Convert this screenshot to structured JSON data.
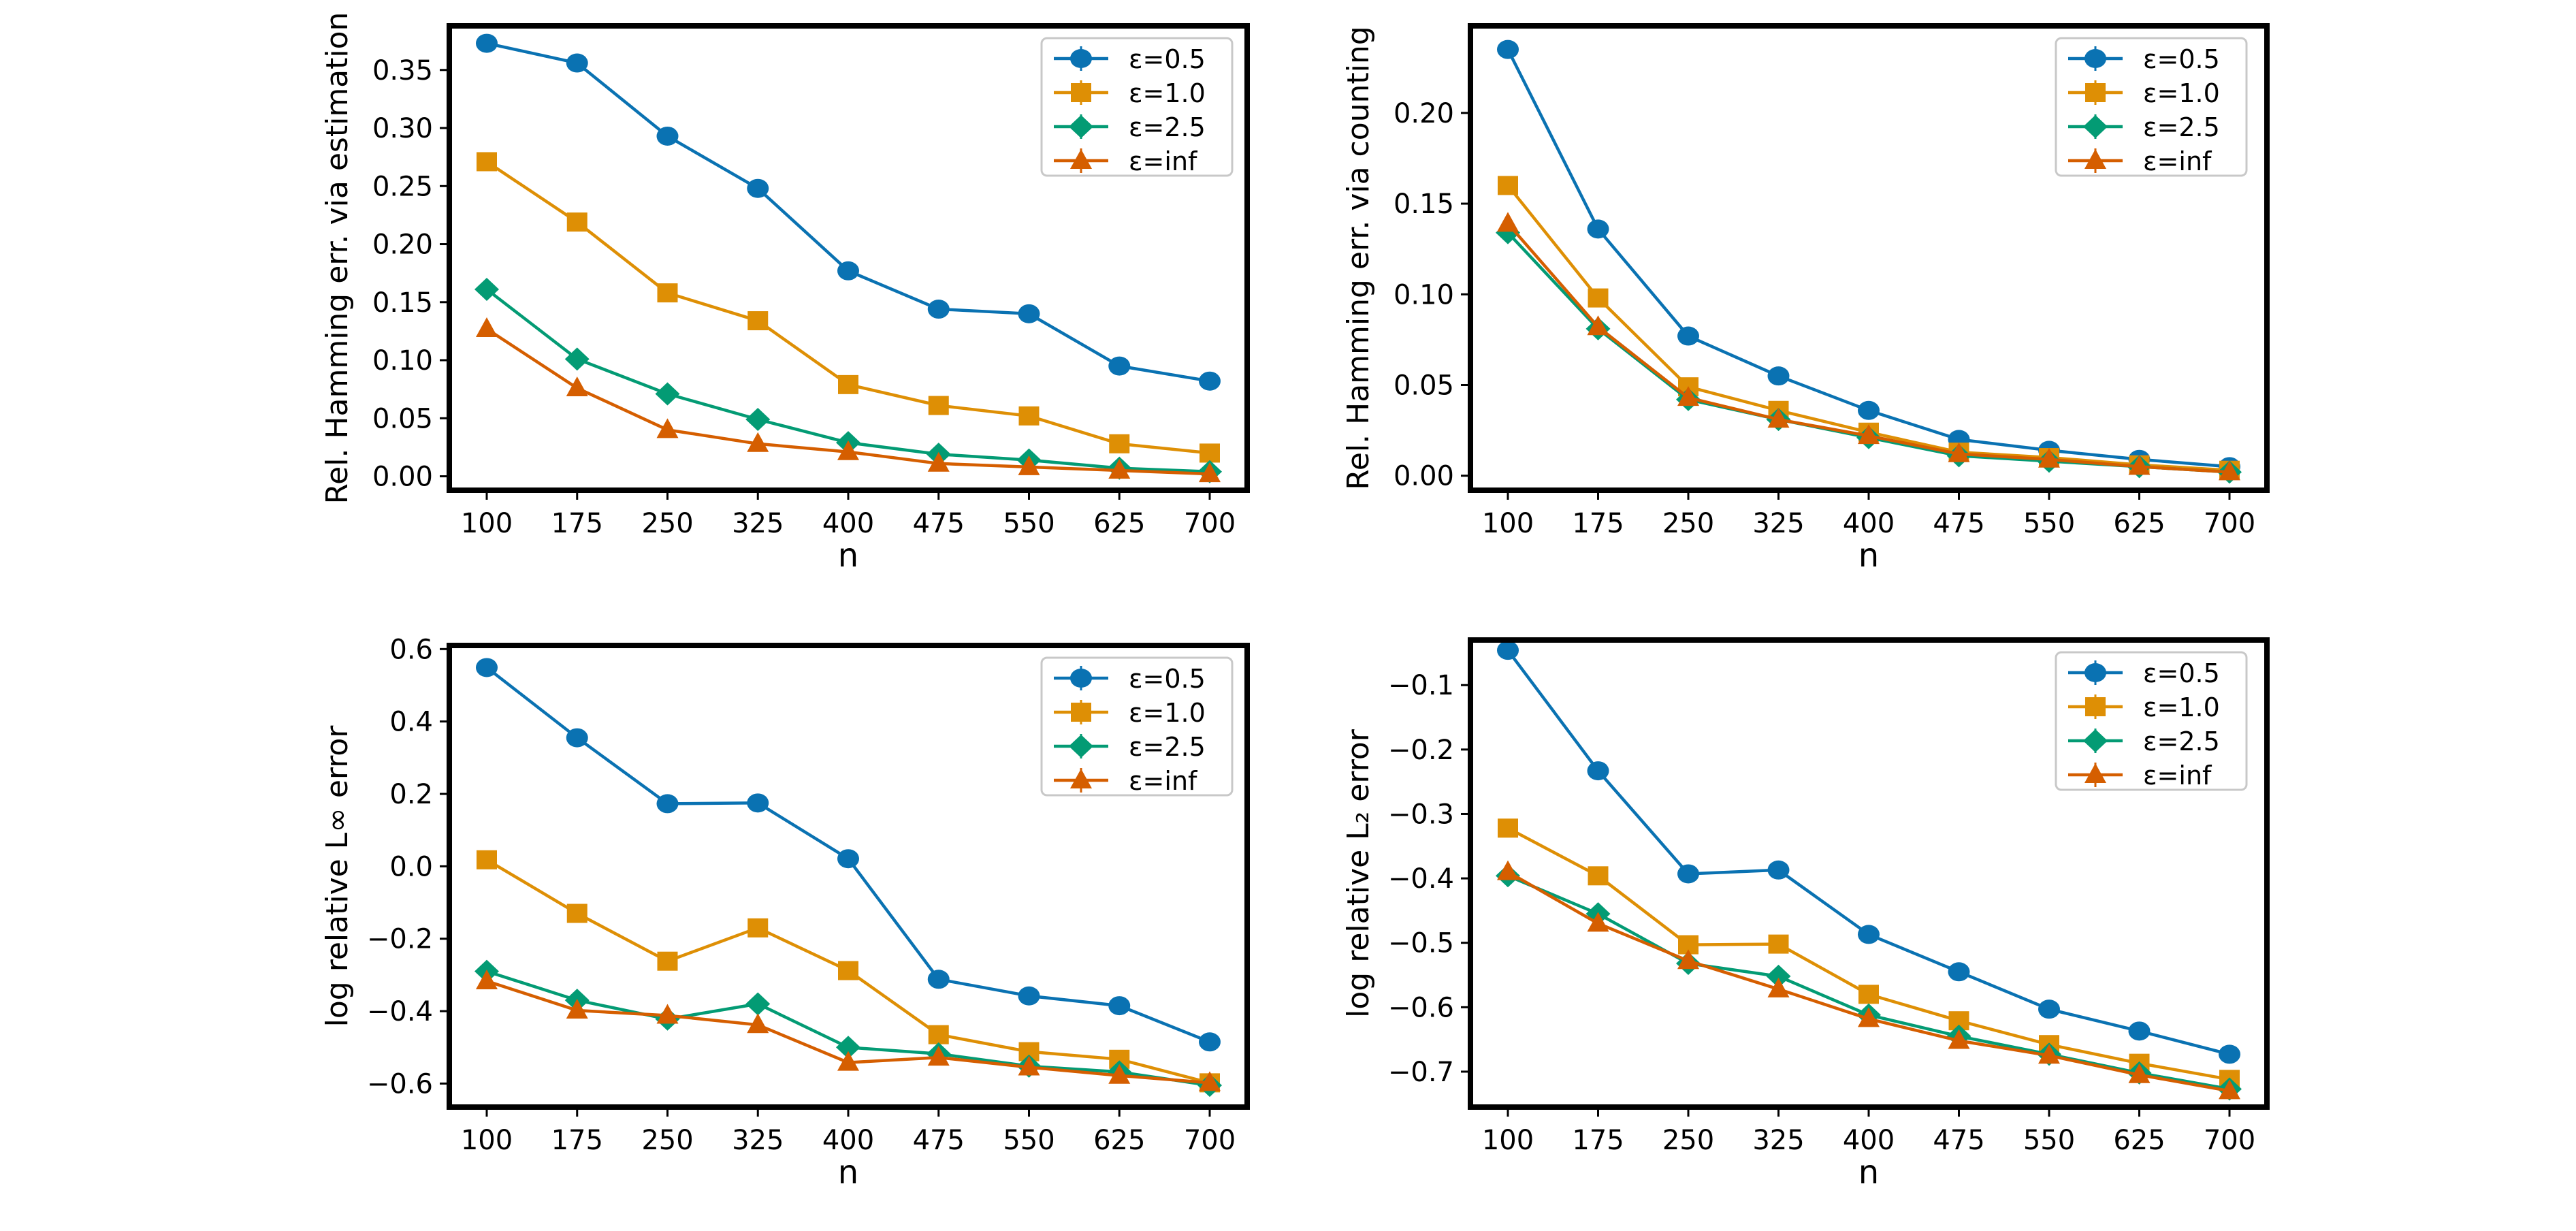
{
  "colors": {
    "eps_0_5": "#0a72b2",
    "eps_1_0": "#de8f05",
    "eps_2_5": "#039b74",
    "eps_inf": "#d55e00"
  },
  "legend": [
    "ε=0.5",
    "ε=1.0",
    "ε=2.5",
    "ε=inf"
  ],
  "chart_data": [
    {
      "type": "line",
      "title": "",
      "xlabel": "n",
      "ylabel": "Rel. Hamming err. via estimation",
      "categories": [
        100,
        175,
        250,
        325,
        400,
        475,
        550,
        625,
        700
      ],
      "ylim": [
        -0.012,
        0.388
      ],
      "yticks": [
        0.0,
        0.05,
        0.1,
        0.15,
        0.2,
        0.25,
        0.3,
        0.35
      ],
      "ytick_labels": [
        "0.00",
        "0.05",
        "0.10",
        "0.15",
        "0.20",
        "0.25",
        "0.30",
        "0.35"
      ],
      "legend_position": "top-right",
      "series": [
        {
          "name": "ε=0.5",
          "marker": "circle",
          "values": [
            0.373,
            0.356,
            0.293,
            0.248,
            0.177,
            0.144,
            0.14,
            0.095,
            0.082
          ]
        },
        {
          "name": "ε=1.0",
          "marker": "square",
          "values": [
            0.271,
            0.219,
            0.158,
            0.134,
            0.079,
            0.061,
            0.052,
            0.028,
            0.02
          ]
        },
        {
          "name": "ε=2.5",
          "marker": "diamond",
          "values": [
            0.161,
            0.101,
            0.071,
            0.049,
            0.029,
            0.019,
            0.014,
            0.007,
            0.004
          ]
        },
        {
          "name": "ε=inf",
          "marker": "triangle",
          "values": [
            0.127,
            0.076,
            0.04,
            0.028,
            0.021,
            0.011,
            0.008,
            0.005,
            0.002
          ]
        }
      ]
    },
    {
      "type": "line",
      "title": "",
      "xlabel": "n",
      "ylabel": "Rel. Hamming err. via counting",
      "categories": [
        100,
        175,
        250,
        325,
        400,
        475,
        550,
        625,
        700
      ],
      "ylim": [
        -0.008,
        0.248
      ],
      "yticks": [
        0.0,
        0.05,
        0.1,
        0.15,
        0.2
      ],
      "ytick_labels": [
        "0.00",
        "0.05",
        "0.10",
        "0.15",
        "0.20"
      ],
      "legend_position": "top-right",
      "series": [
        {
          "name": "ε=0.5",
          "marker": "circle",
          "values": [
            0.235,
            0.136,
            0.077,
            0.055,
            0.036,
            0.02,
            0.014,
            0.009,
            0.005
          ]
        },
        {
          "name": "ε=1.0",
          "marker": "square",
          "values": [
            0.16,
            0.098,
            0.049,
            0.036,
            0.024,
            0.013,
            0.01,
            0.006,
            0.003
          ]
        },
        {
          "name": "ε=2.5",
          "marker": "diamond",
          "values": [
            0.134,
            0.081,
            0.042,
            0.031,
            0.021,
            0.011,
            0.008,
            0.005,
            0.002
          ]
        },
        {
          "name": "ε=inf",
          "marker": "triangle",
          "values": [
            0.139,
            0.082,
            0.043,
            0.031,
            0.022,
            0.012,
            0.009,
            0.005,
            0.002
          ]
        }
      ]
    },
    {
      "type": "line",
      "title": "",
      "xlabel": "n",
      "ylabel": "log relative L∞ error",
      "categories": [
        100,
        175,
        250,
        325,
        400,
        475,
        550,
        625,
        700
      ],
      "ylim": [
        -0.665,
        0.61
      ],
      "yticks": [
        -0.6,
        -0.4,
        -0.2,
        0.0,
        0.2,
        0.4,
        0.6
      ],
      "ytick_labels": [
        "−0.6",
        "−0.4",
        "−0.2",
        "0.0",
        "0.2",
        "0.4",
        "0.6"
      ],
      "legend_position": "top-right",
      "series": [
        {
          "name": "ε=0.5",
          "marker": "circle",
          "values": [
            0.549,
            0.355,
            0.173,
            0.175,
            0.021,
            -0.312,
            -0.358,
            -0.385,
            -0.485
          ]
        },
        {
          "name": "ε=1.0",
          "marker": "square",
          "values": [
            0.018,
            -0.13,
            -0.262,
            -0.17,
            -0.288,
            -0.465,
            -0.512,
            -0.533,
            -0.598
          ]
        },
        {
          "name": "ε=2.5",
          "marker": "diamond",
          "values": [
            -0.29,
            -0.37,
            -0.422,
            -0.38,
            -0.5,
            -0.518,
            -0.552,
            -0.568,
            -0.605
          ]
        },
        {
          "name": "ε=inf",
          "marker": "triangle",
          "values": [
            -0.317,
            -0.398,
            -0.412,
            -0.438,
            -0.542,
            -0.528,
            -0.555,
            -0.578,
            -0.598
          ]
        }
      ]
    },
    {
      "type": "line",
      "title": "",
      "xlabel": "n",
      "ylabel": "log relative L₂ error",
      "categories": [
        100,
        175,
        250,
        325,
        400,
        475,
        550,
        625,
        700
      ],
      "ylim": [
        -0.755,
        -0.03
      ],
      "yticks": [
        -0.7,
        -0.6,
        -0.5,
        -0.4,
        -0.3,
        -0.2,
        -0.1
      ],
      "ytick_labels": [
        "−0.7",
        "−0.6",
        "−0.5",
        "−0.4",
        "−0.3",
        "−0.2",
        "−0.1"
      ],
      "legend_position": "top-right",
      "series": [
        {
          "name": "ε=0.5",
          "marker": "circle",
          "values": [
            -0.046,
            -0.233,
            -0.393,
            -0.387,
            -0.487,
            -0.545,
            -0.603,
            -0.637,
            -0.673
          ]
        },
        {
          "name": "ε=1.0",
          "marker": "square",
          "values": [
            -0.322,
            -0.396,
            -0.503,
            -0.502,
            -0.58,
            -0.621,
            -0.658,
            -0.687,
            -0.712
          ]
        },
        {
          "name": "ε=2.5",
          "marker": "diamond",
          "values": [
            -0.396,
            -0.455,
            -0.532,
            -0.552,
            -0.612,
            -0.645,
            -0.673,
            -0.702,
            -0.727
          ]
        },
        {
          "name": "ε=inf",
          "marker": "triangle",
          "values": [
            -0.39,
            -0.47,
            -0.528,
            -0.572,
            -0.618,
            -0.652,
            -0.675,
            -0.705,
            -0.73
          ]
        }
      ]
    }
  ]
}
